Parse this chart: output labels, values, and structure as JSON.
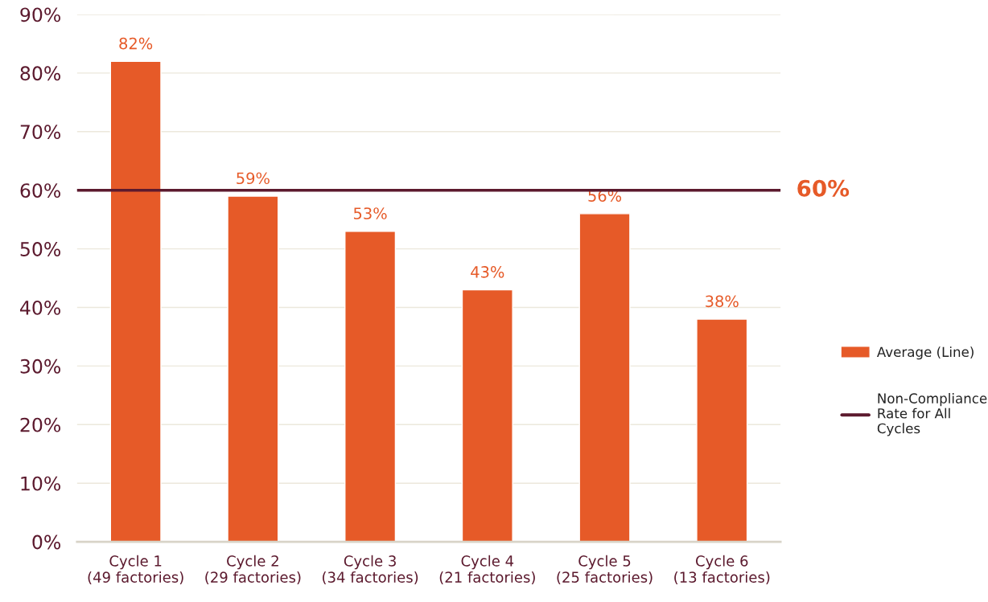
{
  "chart_data": {
    "type": "bar",
    "categories": [
      "Cycle 1\n(49 factories)",
      "Cycle 2\n(29 factories)",
      "Cycle 3\n(34 factories)",
      "Cycle 4\n(21 factories)",
      "Cycle 5\n(25 factories)",
      "Cycle 6\n(13 factories)"
    ],
    "series": [
      {
        "name": "Average (Line)",
        "color": "#e65a28",
        "values": [
          82,
          59,
          53,
          43,
          56,
          38
        ]
      }
    ],
    "value_labels": [
      "82%",
      "59%",
      "53%",
      "43%",
      "56%",
      "38%"
    ],
    "ylim": [
      0,
      90
    ],
    "yticks": [
      {
        "value": 0,
        "label": "0%"
      },
      {
        "value": 10,
        "label": "10%"
      },
      {
        "value": 20,
        "label": "20%"
      },
      {
        "value": 30,
        "label": "30%"
      },
      {
        "value": 40,
        "label": "40%"
      },
      {
        "value": 50,
        "label": "50%"
      },
      {
        "value": 60,
        "label": "60%"
      },
      {
        "value": 70,
        "label": "70%"
      },
      {
        "value": 80,
        "label": "80%"
      },
      {
        "value": 90,
        "label": "90%"
      }
    ],
    "ref_lines": [
      {
        "axis": "y",
        "value": 60,
        "label": "60%",
        "color": "#5c1a2e",
        "line_style": "solid"
      }
    ],
    "annotations": [
      "Non-Compliance\nRate for All\nCycles"
    ],
    "grid": "y",
    "legend": "right"
  }
}
